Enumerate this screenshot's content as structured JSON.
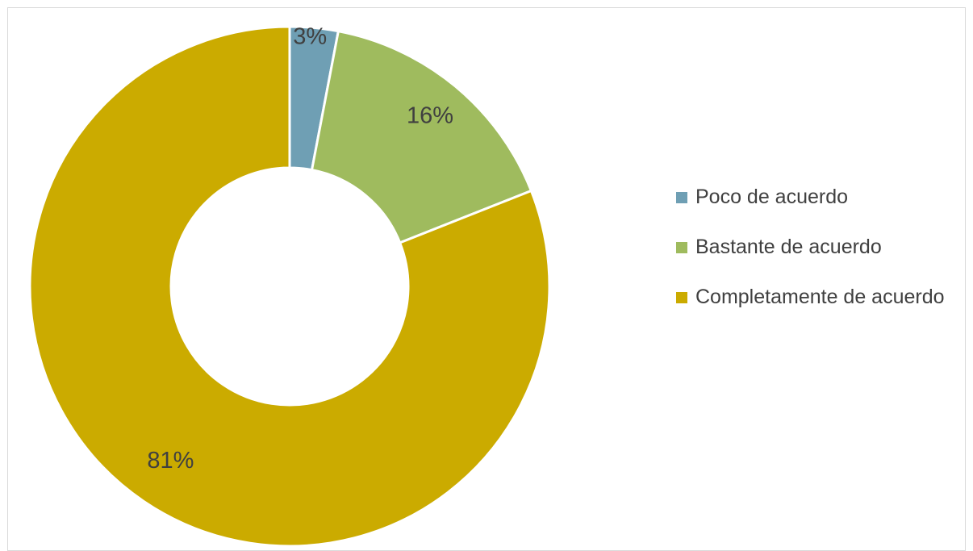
{
  "chart_data": {
    "type": "pie",
    "variant": "donut",
    "title": "",
    "categories": [
      "Poco de acuerdo",
      "Bastante de acuerdo",
      "Completamente de acuerdo"
    ],
    "values": [
      3,
      16,
      81
    ],
    "value_labels": [
      "3%",
      "16%",
      "81%"
    ],
    "colors": [
      "#6f9fb4",
      "#9fbb5e",
      "#cbab00"
    ],
    "legend_position": "right"
  }
}
